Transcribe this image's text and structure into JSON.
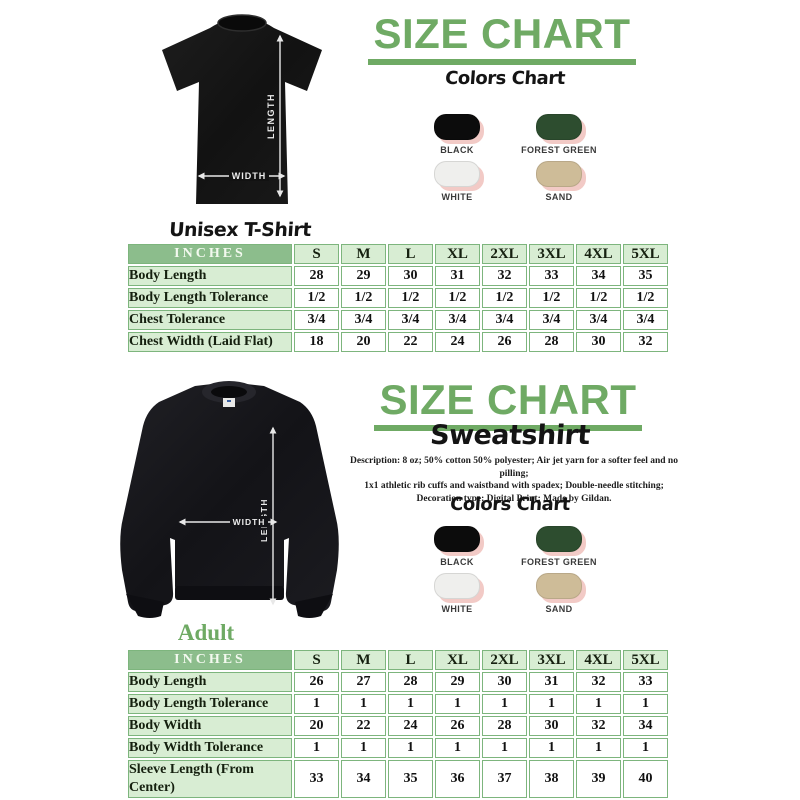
{
  "theme": {
    "green": "#6faa64",
    "head_bg": "#8cbd8c",
    "cell_green": "#d8edd3",
    "grid": "#7db57d",
    "swatch_shadow_pink": "#f2cac6"
  },
  "tshirt_section": {
    "title": "SIZE CHART",
    "caption": "Unisex T-Shirt",
    "colors_chart_title": "Colors Chart",
    "length_label": "LENGTH",
    "width_label": "WIDTH",
    "swatches": [
      {
        "name": "BLACK",
        "hex": "#0c0c0c"
      },
      {
        "name": "FOREST GREEN",
        "hex": "#2d4d2f"
      },
      {
        "name": "WHITE",
        "hex": "#efefed"
      },
      {
        "name": "SAND",
        "hex": "#cebc98"
      }
    ],
    "table": {
      "unit_header": "INCHES",
      "sizes": [
        "S",
        "M",
        "L",
        "XL",
        "2XL",
        "3XL",
        "4XL",
        "5XL"
      ],
      "rows": [
        {
          "label": "Body Length",
          "values": [
            "28",
            "29",
            "30",
            "31",
            "32",
            "33",
            "34",
            "35"
          ]
        },
        {
          "label": "Body Length Tolerance",
          "values": [
            "1/2",
            "1/2",
            "1/2",
            "1/2",
            "1/2",
            "1/2",
            "1/2",
            "1/2"
          ]
        },
        {
          "label": "Chest Tolerance",
          "values": [
            "3/4",
            "3/4",
            "3/4",
            "3/4",
            "3/4",
            "3/4",
            "3/4",
            "3/4"
          ]
        },
        {
          "label": "Chest Width (Laid Flat)",
          "values": [
            "18",
            "20",
            "22",
            "24",
            "26",
            "28",
            "30",
            "32"
          ]
        }
      ]
    }
  },
  "sweatshirt_section": {
    "title": "SIZE CHART",
    "subtitle": "Sweatshirt",
    "description_lines": [
      "Description: 8 oz; 50% cotton 50% polyester; Air jet yarn for a softer feel and no pilling;",
      "1x1 athletic rib cuffs and waistband with spadex; Double-needle stitching;",
      "Decoration type: Digital Print; Made by Gildan."
    ],
    "colors_chart_title": "Colors Chart",
    "adult_label": "Adult",
    "length_label": "LENGTH",
    "width_label": "WIDTH",
    "swatches": [
      {
        "name": "BLACK",
        "hex": "#0c0c0c"
      },
      {
        "name": "FOREST GREEN",
        "hex": "#2d4d2f"
      },
      {
        "name": "WHITE",
        "hex": "#efefed"
      },
      {
        "name": "SAND",
        "hex": "#cebc98"
      }
    ],
    "table": {
      "unit_header": "INCHES",
      "sizes": [
        "S",
        "M",
        "L",
        "XL",
        "2XL",
        "3XL",
        "4XL",
        "5XL"
      ],
      "rows": [
        {
          "label": "Body Length",
          "values": [
            "26",
            "27",
            "28",
            "29",
            "30",
            "31",
            "32",
            "33"
          ]
        },
        {
          "label": "Body Length Tolerance",
          "values": [
            "1",
            "1",
            "1",
            "1",
            "1",
            "1",
            "1",
            "1"
          ]
        },
        {
          "label": "Body Width",
          "values": [
            "20",
            "22",
            "24",
            "26",
            "28",
            "30",
            "32",
            "34"
          ]
        },
        {
          "label": "Body Width Tolerance",
          "values": [
            "1",
            "1",
            "1",
            "1",
            "1",
            "1",
            "1",
            "1"
          ]
        },
        {
          "label": "Sleeve Length (From Center)",
          "values": [
            "33",
            "34",
            "35",
            "36",
            "37",
            "38",
            "39",
            "40"
          ]
        }
      ]
    }
  }
}
